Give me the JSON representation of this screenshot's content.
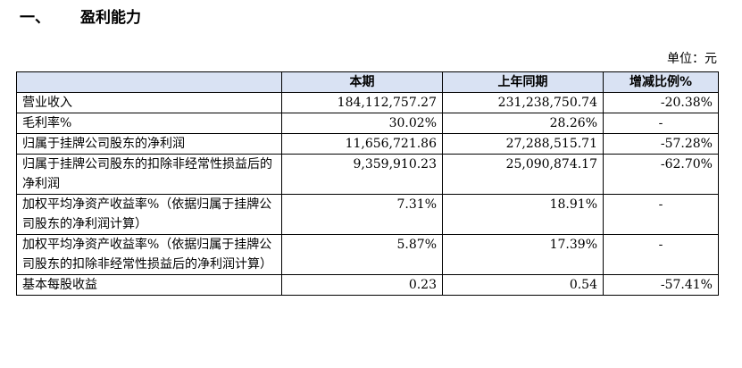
{
  "section": {
    "number": "一、",
    "title": "盈利能力"
  },
  "unit_label": "单位：元",
  "table": {
    "headers": [
      "",
      "本期",
      "上年同期",
      "增减比例%"
    ],
    "rows": [
      {
        "item": "营业收入",
        "current": "184,112,757.27",
        "prior": "231,238,750.74",
        "change": "-20.38%"
      },
      {
        "item": "毛利率%",
        "current": "30.02%",
        "prior": "28.26%",
        "change": "-"
      },
      {
        "item": "归属于挂牌公司股东的净利润",
        "current": "11,656,721.86",
        "prior": "27,288,515.71",
        "change": "-57.28%"
      },
      {
        "item": "归属于挂牌公司股东的扣除非经常性损益后的净利润",
        "current": "9,359,910.23",
        "prior": "25,090,874.17",
        "change": "-62.70%"
      },
      {
        "item": "加权平均净资产收益率%（依据归属于挂牌公司股东的净利润计算）",
        "current": "7.31%",
        "prior": "18.91%",
        "change": "-"
      },
      {
        "item": "加权平均净资产收益率%（依据归属于挂牌公司股东的扣除非经常性损益后的净利润计算）",
        "current": "5.87%",
        "prior": "17.39%",
        "change": "-"
      },
      {
        "item": "基本每股收益",
        "current": "0.23",
        "prior": "0.54",
        "change": "-57.41%"
      }
    ]
  }
}
